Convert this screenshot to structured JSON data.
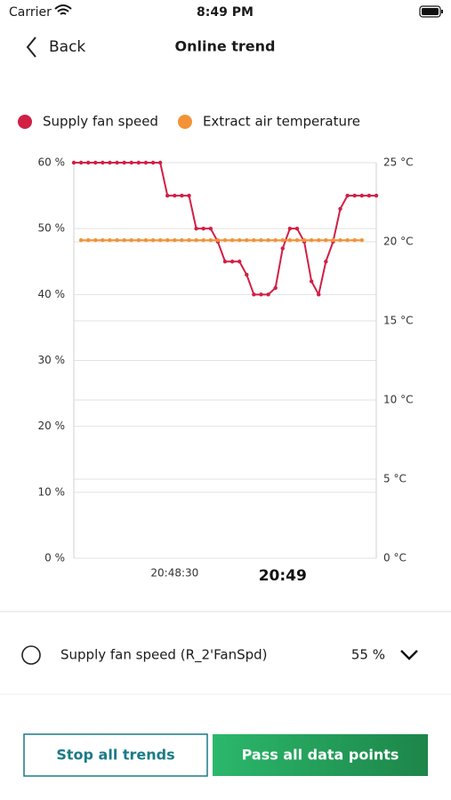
{
  "status_bar": {
    "carrier": "Carrier",
    "time": "8:49 PM"
  },
  "header": {
    "back": "Back",
    "title": "Online trend"
  },
  "chart_data": {
    "type": "line",
    "categories": [
      null,
      null,
      null,
      null,
      null,
      null,
      null,
      null,
      null,
      null,
      null,
      null,
      null,
      null,
      "20:48:30",
      null,
      null,
      null,
      null,
      null,
      null,
      null,
      null,
      null,
      null,
      null,
      null,
      null,
      null,
      "20:49",
      null,
      null,
      null,
      null,
      null,
      null,
      null,
      null,
      null,
      null,
      null,
      null,
      null
    ],
    "series": [
      {
        "name": "Supply fan speed",
        "color": "#d11f45",
        "values": [
          60,
          60,
          60,
          60,
          60,
          60,
          60,
          60,
          60,
          60,
          60,
          60,
          60,
          55,
          55,
          55,
          55,
          50,
          50,
          50,
          48,
          45,
          45,
          45,
          43,
          40,
          40,
          40,
          41,
          47,
          50,
          50,
          48,
          42,
          40,
          45,
          48,
          53,
          55,
          55,
          55,
          55,
          55
        ]
      },
      {
        "name": "Extract air temperature",
        "color": "#f39237",
        "axis": "y2",
        "values": [
          null,
          20.1,
          20.1,
          20.1,
          20.1,
          20.1,
          20.1,
          20.1,
          20.1,
          20.1,
          20.1,
          20.1,
          20.1,
          20.1,
          20.1,
          20.1,
          20.1,
          20.1,
          20.1,
          20.1,
          20.1,
          20.1,
          20.1,
          20.1,
          20.1,
          20.1,
          20.1,
          20.1,
          20.1,
          20.1,
          20.1,
          20.1,
          20.1,
          20.1,
          20.1,
          20.1,
          20.1,
          20.1,
          20.1,
          20.1,
          20.1,
          null,
          null
        ]
      }
    ],
    "ylim": [
      0,
      60
    ],
    "yticks": [
      {
        "value": 0,
        "label": "0 %"
      },
      {
        "value": 10,
        "label": "10 %"
      },
      {
        "value": 20,
        "label": "20 %"
      },
      {
        "value": 30,
        "label": "30 %"
      },
      {
        "value": 40,
        "label": "40 %"
      },
      {
        "value": 50,
        "label": "50 %"
      },
      {
        "value": 60,
        "label": "60 %"
      }
    ],
    "y2lim": [
      0,
      25
    ],
    "y2ticks": [
      {
        "value": 0,
        "label": "0 °C"
      },
      {
        "value": 5,
        "label": "5 °C"
      },
      {
        "value": 10,
        "label": "10 °C"
      },
      {
        "value": 15,
        "label": "15 °C"
      },
      {
        "value": 20,
        "label": "20 °C"
      },
      {
        "value": 25,
        "label": "25 °C"
      }
    ],
    "grid": true
  },
  "data_point": {
    "label": "Supply fan speed (R_2'FanSpd)",
    "value": "55 %"
  },
  "buttons": {
    "stop": "Stop all trends",
    "pass": "Pass all data points"
  }
}
